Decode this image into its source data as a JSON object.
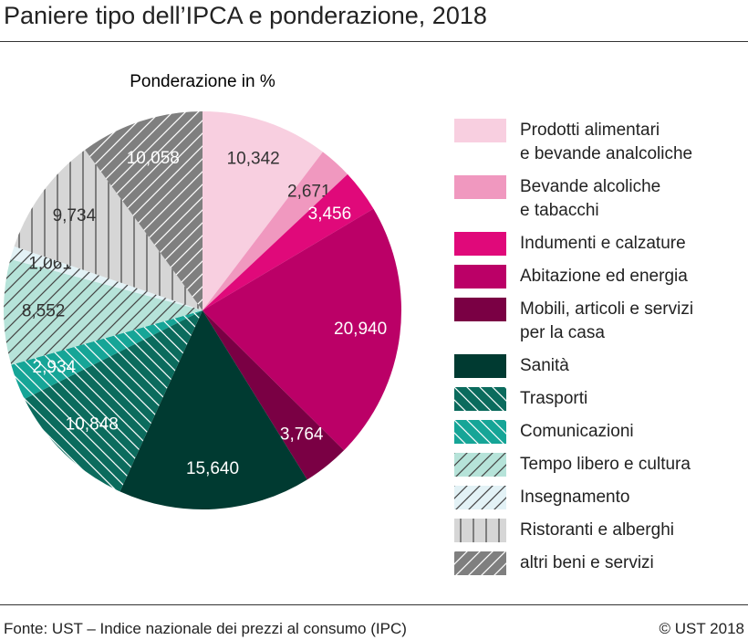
{
  "chart_data": {
    "type": "pie",
    "title": "Paniere tipo dell’IPCA e ponderazione, 2018",
    "subtitle": "Ponderazione in %",
    "categories": [
      "Prodotti alimentari\ne bevande analcoliche",
      "Bevande alcoliche\ne tabacchi",
      "Indumenti e calzature",
      "Abitazione ed energia",
      "Mobili, articoli e servizi\nper la casa",
      "Sanità",
      "Trasporti",
      "Comunicazioni",
      "Tempo libero e cultura",
      "Insegnamento",
      "Ristoranti e alberghi",
      "altri beni e servizi"
    ],
    "values": [
      10.342,
      2.671,
      3.456,
      20.94,
      3.764,
      15.64,
      10.848,
      2.934,
      8.552,
      1.061,
      9.734,
      10.058
    ],
    "value_labels": [
      "10,342",
      "2,671",
      "3,456",
      "20,940",
      "3,764",
      "15,640",
      "10,848",
      "2,934",
      "8,552",
      "1,061",
      "9,734",
      "10,058"
    ],
    "colors": [
      "#f8cfe0",
      "#f098bf",
      "#e0097a",
      "#bb0067",
      "#7a0044",
      "#003a31",
      "#0b6b5d",
      "#16a597",
      "#b6e3d9",
      "#e3f2f6",
      "#d6d6d6",
      "#7f7f7f"
    ],
    "hatch": [
      null,
      null,
      null,
      null,
      null,
      null,
      "\\",
      "\\",
      "/",
      "/",
      "|",
      "/"
    ],
    "source": "Fonte: UST – Indice nazionale dei prezzi al consumo (IPC)",
    "copyright": "© UST 2018"
  }
}
